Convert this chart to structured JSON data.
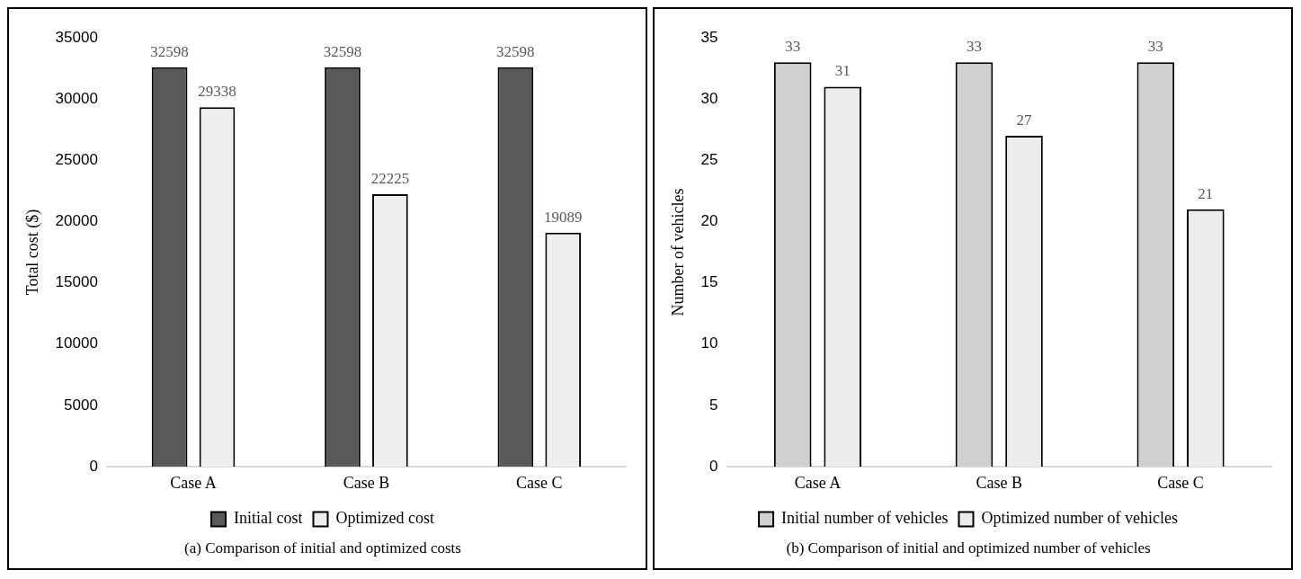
{
  "chart_data": [
    {
      "type": "bar",
      "title": "(a) Comparison of initial and optimized costs",
      "ylabel": "Total cost ($)",
      "categories": [
        "Case A",
        "Case B",
        "Case C"
      ],
      "series": [
        {
          "name": "Initial cost",
          "color": "#595959",
          "values": [
            32598,
            32598,
            32598
          ]
        },
        {
          "name": "Optimized cost",
          "color": "#eeeeee",
          "values": [
            29338,
            22225,
            19089
          ]
        }
      ],
      "ylim": [
        0,
        35000
      ],
      "yticks": [
        0,
        5000,
        10000,
        15000,
        20000,
        25000,
        30000,
        35000
      ],
      "data_labels": true,
      "legend": "bottom"
    },
    {
      "type": "bar",
      "title": "(b) Comparison of initial and optimized number of vehicles",
      "ylabel": "Number of vehicles",
      "categories": [
        "Case A",
        "Case B",
        "Case C"
      ],
      "series": [
        {
          "name": "Initial number of vehicles",
          "color": "#d0d0d0",
          "values": [
            33,
            33,
            33
          ]
        },
        {
          "name": "Optimized number of vehicles",
          "color": "#ececec",
          "values": [
            31,
            27,
            21
          ]
        }
      ],
      "ylim": [
        0,
        35
      ],
      "yticks": [
        0,
        5,
        10,
        15,
        20,
        25,
        30,
        35
      ],
      "data_labels": true,
      "legend": "bottom"
    }
  ]
}
